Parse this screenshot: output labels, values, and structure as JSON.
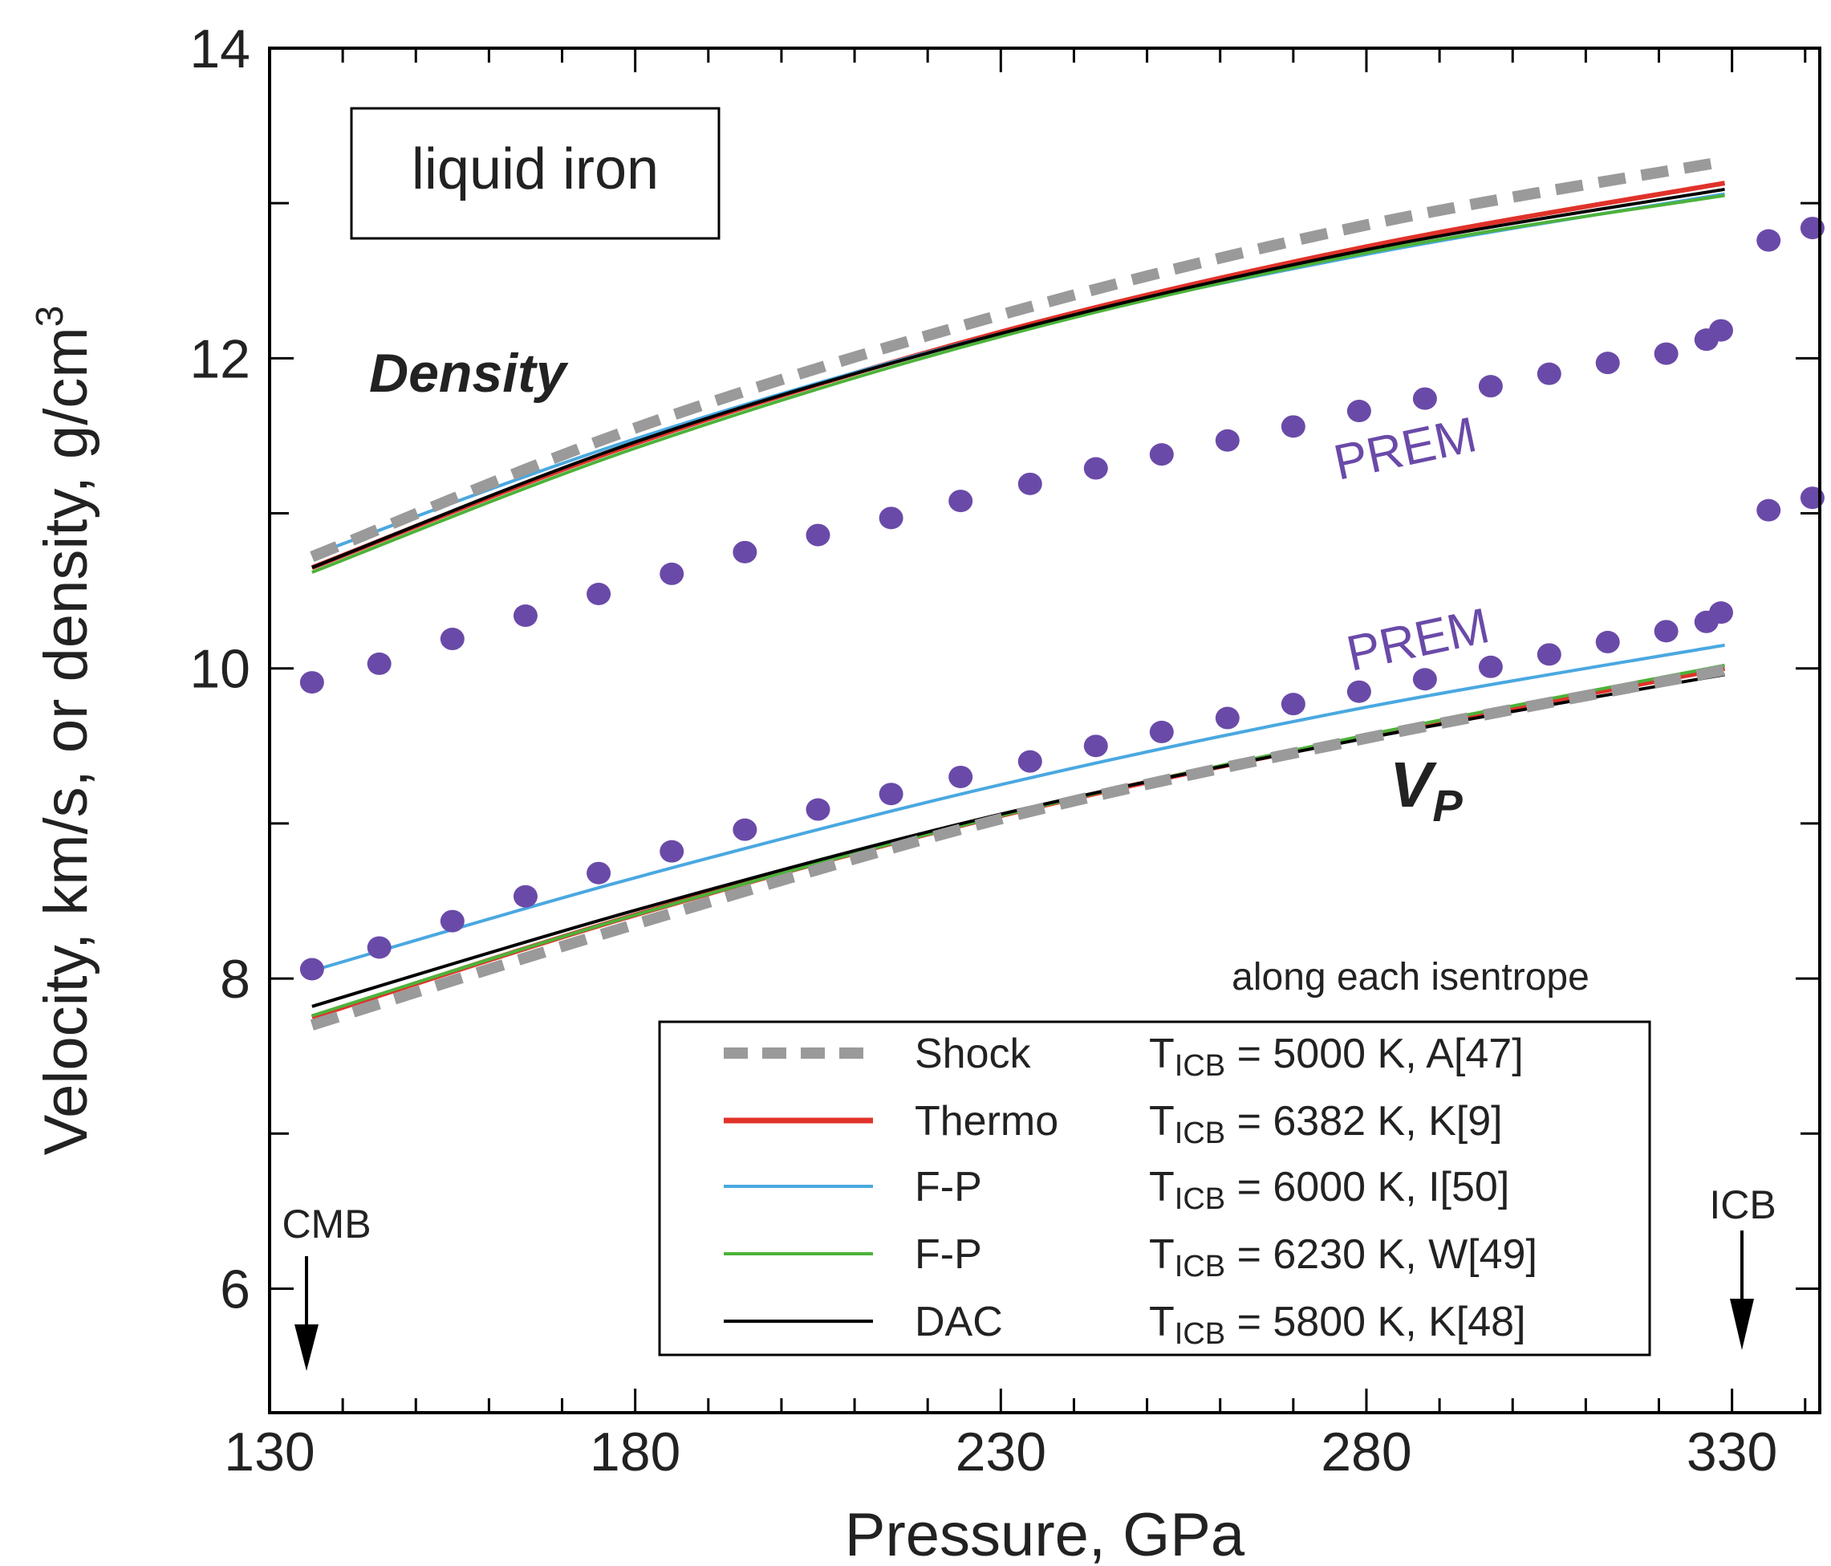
{
  "chart_data": {
    "type": "line",
    "title": "",
    "xlabel": "Pressure, GPa",
    "ylabel": "Velocity, km/s, or density, g/cm",
    "ylabel_sup": "3",
    "xlim": [
      130,
      342
    ],
    "ylim": [
      5.2,
      14
    ],
    "x_ticks": [
      130,
      180,
      230,
      280,
      330
    ],
    "y_ticks": [
      6,
      8,
      10,
      12,
      14
    ],
    "x_minor_step": 10,
    "y_minor_step": 1,
    "grid": false,
    "sample_label": "liquid iron",
    "group_labels": {
      "density": "Density",
      "vp_main": "V",
      "vp_sub": "P"
    },
    "prem_label": "PREM",
    "markers": [
      {
        "name": "CMB",
        "x": 135.8
      },
      {
        "name": "ICB",
        "x": 329
      }
    ],
    "legend": {
      "note": "along each isentrope",
      "position": "bottom-right",
      "rows": [
        {
          "series": "Shock",
          "t": "T",
          "sub": "ICB",
          "rest": " = 5000 K, A[47]"
        },
        {
          "series": "Thermo",
          "t": "T",
          "sub": "ICB",
          "rest": " = 6382 K, K[9]"
        },
        {
          "series": "F-P",
          "t": "T",
          "sub": "ICB",
          "rest": " = 6000 K, I[50]"
        },
        {
          "series": "F-P",
          "t": "T",
          "sub": "ICB",
          "rest": " = 6230 K, W[49]"
        },
        {
          "series": "DAC",
          "t": "T",
          "sub": "ICB",
          "rest": " = 5800 K, K[48]"
        }
      ]
    },
    "series": [
      {
        "name": "Shock",
        "group": "density",
        "color": "#9a9a9a",
        "style": "dashed",
        "x": [
          135.8,
          180,
          230,
          280,
          329
        ],
        "y": [
          10.72,
          11.55,
          12.28,
          12.86,
          13.27
        ]
      },
      {
        "name": "Thermo",
        "group": "density",
        "color": "#e0322a",
        "style": "solid",
        "x": [
          135.8,
          180,
          230,
          280,
          329
        ],
        "y": [
          10.65,
          11.45,
          12.17,
          12.72,
          13.13
        ]
      },
      {
        "name": "F-P",
        "group": "density",
        "color": "#4aa8e0",
        "style": "solid",
        "x": [
          135.8,
          180,
          230,
          280,
          329
        ],
        "y": [
          10.73,
          11.48,
          12.16,
          12.67,
          13.06
        ]
      },
      {
        "name": "F-P",
        "group": "density",
        "color": "#4db23a",
        "style": "solid",
        "x": [
          135.8,
          180,
          230,
          280,
          329
        ],
        "y": [
          10.62,
          11.42,
          12.14,
          12.68,
          13.05
        ]
      },
      {
        "name": "DAC",
        "group": "density",
        "color": "#000000",
        "style": "solid",
        "x": [
          135.8,
          180,
          230,
          280,
          329
        ],
        "y": [
          10.65,
          11.46,
          12.16,
          12.7,
          13.09
        ]
      },
      {
        "name": "Shock",
        "group": "vp",
        "color": "#9a9a9a",
        "style": "dashed",
        "x": [
          135.8,
          180,
          230,
          280,
          329
        ],
        "y": [
          7.7,
          8.35,
          9.03,
          9.55,
          9.99
        ]
      },
      {
        "name": "Thermo",
        "group": "vp",
        "color": "#e0322a",
        "style": "solid",
        "x": [
          135.8,
          180,
          230,
          280,
          329
        ],
        "y": [
          7.75,
          8.41,
          9.05,
          9.56,
          10.0
        ]
      },
      {
        "name": "F-P",
        "group": "vp",
        "color": "#4aa8e0",
        "style": "solid",
        "x": [
          135.8,
          180,
          230,
          280,
          329
        ],
        "y": [
          8.05,
          8.65,
          9.25,
          9.75,
          10.15
        ]
      },
      {
        "name": "F-P",
        "group": "vp",
        "color": "#4db23a",
        "style": "solid",
        "x": [
          135.8,
          180,
          230,
          280,
          329
        ],
        "y": [
          7.76,
          8.41,
          9.05,
          9.57,
          10.02
        ]
      },
      {
        "name": "DAC",
        "group": "vp",
        "color": "#000000",
        "style": "solid",
        "x": [
          135.8,
          180,
          230,
          280,
          329
        ],
        "y": [
          7.82,
          8.44,
          9.06,
          9.55,
          9.96
        ]
      }
    ],
    "prem": {
      "color": "#6a4aa8",
      "density": {
        "x": [
          135.8,
          145,
          155,
          165,
          175,
          185,
          195,
          205,
          215,
          224.5,
          234,
          243,
          252,
          261,
          270,
          279,
          288,
          297,
          305,
          313,
          321,
          326.5,
          328.5,
          335,
          341
        ],
        "y": [
          9.91,
          10.03,
          10.19,
          10.34,
          10.48,
          10.61,
          10.75,
          10.86,
          10.97,
          11.08,
          11.19,
          11.29,
          11.38,
          11.47,
          11.56,
          11.66,
          11.74,
          11.82,
          11.9,
          11.97,
          12.03,
          12.12,
          12.18,
          12.76,
          12.84
        ]
      },
      "vp": {
        "x": [
          135.8,
          145,
          155,
          165,
          175,
          185,
          195,
          205,
          215,
          224.5,
          234,
          243,
          252,
          261,
          270,
          279,
          288,
          297,
          305,
          313,
          321,
          326.5,
          328.5,
          335,
          341
        ],
        "y": [
          8.06,
          8.2,
          8.37,
          8.53,
          8.68,
          8.82,
          8.96,
          9.09,
          9.19,
          9.3,
          9.4,
          9.5,
          9.59,
          9.68,
          9.77,
          9.85,
          9.93,
          10.01,
          10.09,
          10.17,
          10.24,
          10.3,
          10.36,
          11.02,
          11.1
        ]
      }
    }
  }
}
